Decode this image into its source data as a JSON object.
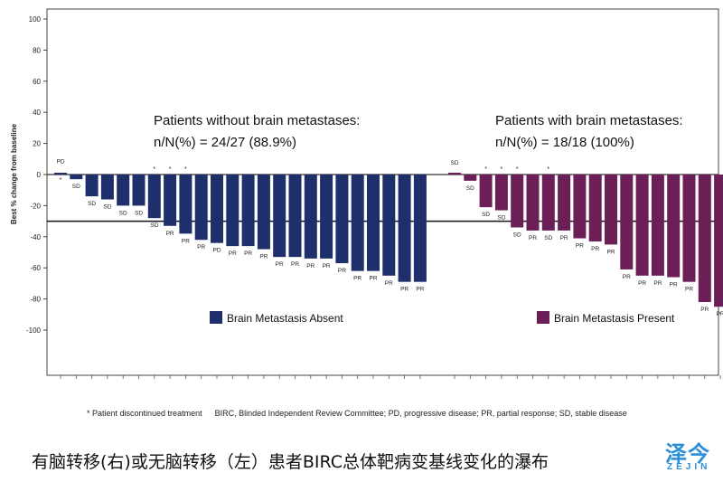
{
  "chart_data": {
    "type": "bar",
    "title": "",
    "ylabel": "Best % change from baseline",
    "xlabel": "",
    "ylim": [
      -130,
      105
    ],
    "yticks": [
      100,
      80,
      60,
      40,
      20,
      0,
      -20,
      -40,
      -60,
      -80,
      -100
    ],
    "reference_line": -30,
    "groups": [
      {
        "name": "Brain Metastasis Absent",
        "color": "#1e2f6b",
        "annotation_line1": "Patients without brain metastases:",
        "annotation_line2": "n/N(%) = 24/27 (88.9%)",
        "values": [
          1,
          -3,
          -14,
          -16,
          -20,
          -20,
          -28,
          -33,
          -38,
          -42,
          -44,
          -46,
          -46,
          -48,
          -53,
          -53,
          -54,
          -54,
          -57,
          -62,
          -62,
          -65,
          -69,
          -69
        ],
        "labels": [
          "PD",
          "SD",
          "SD",
          "SD",
          "SD",
          "SD",
          "SD",
          "PR",
          "PR",
          "PR",
          "PD",
          "PR",
          "PR",
          "PR",
          "PR",
          "PR",
          "PR",
          "PR",
          "PR",
          "PR",
          "PR",
          "PR",
          "PR",
          "PR"
        ],
        "discontinued": [
          true,
          false,
          false,
          false,
          false,
          false,
          true,
          true,
          true,
          false,
          false,
          false,
          false,
          false,
          false,
          false,
          false,
          false,
          false,
          false,
          false,
          false,
          false,
          false
        ]
      },
      {
        "name": "Brain Metastasis Present",
        "color": "#6b1f56",
        "annotation_line1": "Patients with brain metastases:",
        "annotation_line2": "n/N(%) = 18/18 (100%)",
        "values": [
          0,
          -4,
          -21,
          -23,
          -34,
          -36,
          -36,
          -36,
          -41,
          -43,
          -45,
          -61,
          -65,
          -65,
          -66,
          -69,
          -82,
          -85
        ],
        "labels": [
          "SD",
          "SD",
          "SD",
          "SD",
          "SD",
          "PR",
          "SD",
          "PR",
          "PR",
          "PR",
          "PR",
          "PR",
          "PR",
          "PR",
          "PR",
          "PR",
          "PR",
          "PR"
        ],
        "discontinued": [
          false,
          false,
          true,
          true,
          true,
          false,
          true,
          false,
          false,
          false,
          false,
          false,
          false,
          false,
          false,
          false,
          false,
          false
        ]
      }
    ]
  },
  "footnote": {
    "left": "* Patient discontinued treatment",
    "right": "BIRC, Blinded Independent Review Committee; PD, progressive disease; PR, partial response; SD, stable disease"
  },
  "caption": "有脑转移(右)或无脑转移（左）患者BIRC总体靶病变基线变化的瀑布",
  "logo": {
    "chinese": "泽今",
    "english": "ZEJIN"
  }
}
